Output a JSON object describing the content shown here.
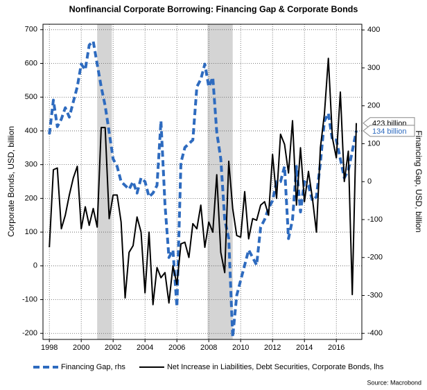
{
  "chart_data": {
    "type": "line",
    "title": "Nonfinancial Corporate Borrowing: Financing Gap & Corporate Bonds",
    "ylabel": "Corporate Bonds, USD, billion",
    "y2label": "Financing Gap, USD, billion",
    "source": "Source: Macrobond",
    "xlim": [
      1997.6,
      2017.6
    ],
    "xticks": [
      1998,
      2000,
      2002,
      2004,
      2006,
      2008,
      2010,
      2012,
      2014,
      2016
    ],
    "ylim": [
      -218,
      716
    ],
    "yticks": [
      -200,
      -100,
      0,
      100,
      200,
      300,
      400,
      500,
      600,
      700
    ],
    "y2lim": [
      -416,
      415
    ],
    "y2ticks": [
      -400,
      -300,
      -200,
      -100,
      0,
      100,
      200,
      300,
      400
    ],
    "grid": true,
    "shaded_periods": [
      [
        2001.0,
        2001.92
      ],
      [
        2007.92,
        2009.5
      ]
    ],
    "x": [
      1998.0,
      1998.25,
      1998.5,
      1998.75,
      1999.0,
      1999.25,
      1999.5,
      1999.75,
      2000.0,
      2000.25,
      2000.5,
      2000.75,
      2001.0,
      2001.25,
      2001.5,
      2001.75,
      2002.0,
      2002.25,
      2002.5,
      2002.75,
      2003.0,
      2003.25,
      2003.5,
      2003.75,
      2004.0,
      2004.25,
      2004.5,
      2004.75,
      2005.0,
      2005.25,
      2005.5,
      2005.75,
      2006.0,
      2006.25,
      2006.5,
      2006.75,
      2007.0,
      2007.25,
      2007.5,
      2007.75,
      2008.0,
      2008.25,
      2008.5,
      2008.75,
      2009.0,
      2009.25,
      2009.5,
      2009.75,
      2010.0,
      2010.25,
      2010.5,
      2010.75,
      2011.0,
      2011.25,
      2011.5,
      2011.75,
      2012.0,
      2012.25,
      2012.5,
      2012.75,
      2013.0,
      2013.25,
      2013.5,
      2013.75,
      2014.0,
      2014.25,
      2014.5,
      2014.75,
      2015.0,
      2015.25,
      2015.5,
      2015.75,
      2016.0,
      2016.25,
      2016.5,
      2016.75,
      2017.0,
      2017.25
    ],
    "series": [
      {
        "name": "Financing Gap, rhs",
        "color": "#2e6bbf",
        "dash": true,
        "axis": "y2",
        "values": [
          125,
          215,
          145,
          165,
          195,
          170,
          210,
          250,
          310,
          295,
          360,
          370,
          310,
          250,
          200,
          130,
          60,
          40,
          0,
          -10,
          -20,
          0,
          -30,
          10,
          0,
          -40,
          -30,
          -10,
          160,
          -60,
          -200,
          -180,
          -330,
          50,
          90,
          100,
          110,
          250,
          270,
          310,
          250,
          275,
          130,
          60,
          -100,
          -150,
          -410,
          -300,
          -260,
          -220,
          -180,
          -200,
          -220,
          -120,
          -100,
          -70,
          -50,
          0,
          0,
          40,
          -150,
          -100,
          40,
          -80,
          0,
          -10,
          -50,
          -40,
          50,
          160,
          180,
          110,
          110,
          60,
          10,
          30,
          80,
          134
        ]
      },
      {
        "name": "Net Increase in Liabilities, Debt Securities, Corporate Bonds, lhs",
        "color": "#000000",
        "dash": false,
        "axis": "y",
        "values": [
          55,
          285,
          290,
          110,
          150,
          210,
          260,
          295,
          110,
          175,
          120,
          170,
          115,
          410,
          410,
          140,
          210,
          210,
          130,
          -95,
          40,
          60,
          145,
          100,
          -80,
          100,
          -115,
          -5,
          -35,
          -20,
          -110,
          0,
          -55,
          65,
          70,
          25,
          125,
          110,
          180,
          55,
          130,
          100,
          270,
          40,
          -20,
          310,
          170,
          90,
          85,
          220,
          80,
          140,
          135,
          180,
          190,
          150,
          330,
          200,
          390,
          360,
          275,
          430,
          180,
          350,
          190,
          280,
          200,
          100,
          350,
          450,
          615,
          380,
          320,
          515,
          250,
          340,
          -85,
          423
        ]
      }
    ],
    "callouts": [
      {
        "label": "423 billion",
        "value": 423,
        "axis": "y",
        "color": "#000000"
      },
      {
        "label": "134 billion",
        "value": 134,
        "axis": "y2",
        "color": "#2e6bbf"
      }
    ]
  }
}
